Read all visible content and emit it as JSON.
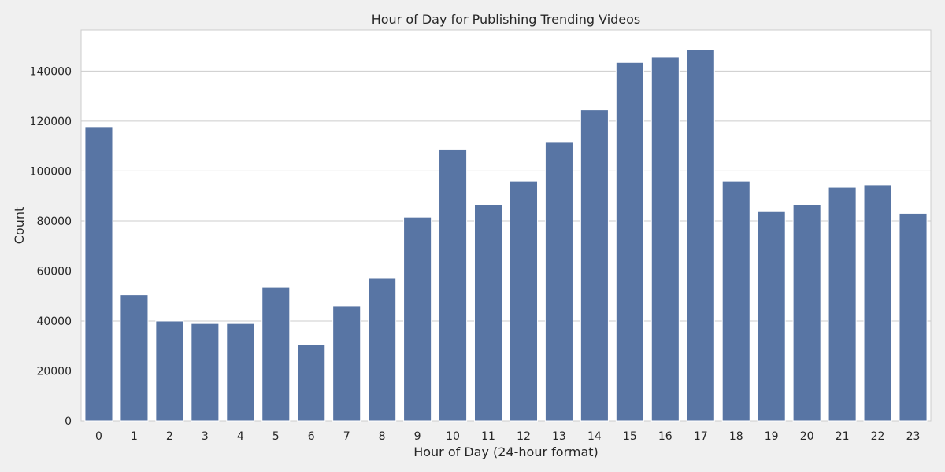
{
  "chart_data": {
    "type": "bar",
    "title": "Hour of Day for Publishing Trending Videos",
    "xlabel": "Hour of Day (24-hour format)",
    "ylabel": "Count",
    "categories": [
      "0",
      "1",
      "2",
      "3",
      "4",
      "5",
      "6",
      "7",
      "8",
      "9",
      "10",
      "11",
      "12",
      "13",
      "14",
      "15",
      "16",
      "17",
      "18",
      "19",
      "20",
      "21",
      "22",
      "23"
    ],
    "values": [
      117500,
      50500,
      40000,
      39000,
      39000,
      53500,
      30500,
      46000,
      57000,
      81500,
      108500,
      86500,
      96000,
      111500,
      124500,
      143500,
      145500,
      148500,
      96000,
      84000,
      86500,
      93500,
      94500,
      83000
    ],
    "ylim": [
      0,
      156500
    ],
    "yticks": [
      0,
      20000,
      40000,
      60000,
      80000,
      100000,
      120000,
      140000
    ],
    "ytick_labels": [
      "0",
      "20000",
      "40000",
      "60000",
      "80000",
      "100000",
      "120000",
      "140000"
    ],
    "grid": "horizontal",
    "colors": {
      "bar": "#5875a4",
      "background": "#f0f0f0",
      "plot_background": "#ffffff",
      "grid": "#cccccc",
      "text": "#262626"
    }
  }
}
